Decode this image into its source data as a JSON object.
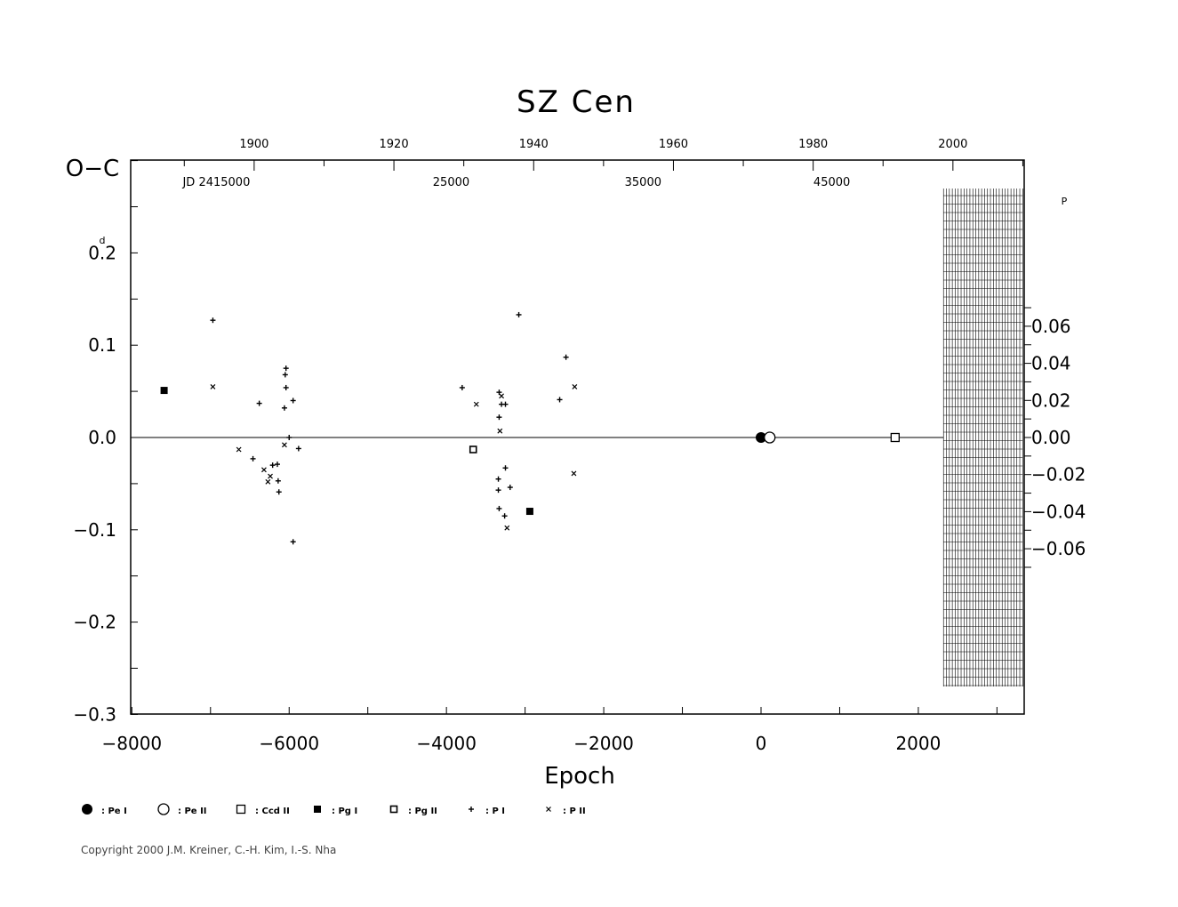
{
  "chart_data": {
    "type": "scatter",
    "title": "SZ Cen",
    "xlabel": "Epoch",
    "ylabel": "O−C",
    "ylabel_unit": "d",
    "right_axis_unit": "P",
    "xlim": [
      -8000,
      3350
    ],
    "ylim": [
      -0.3,
      0.3
    ],
    "x_ticks": [
      -8000,
      -6000,
      -4000,
      -2000,
      0,
      2000
    ],
    "x_tick_labels": [
      "−8000",
      "−6000",
      "−4000",
      "−2000",
      "0",
      "2000"
    ],
    "y_ticks": [
      -0.3,
      -0.2,
      -0.1,
      0.0,
      0.1,
      0.2
    ],
    "y_tick_labels": [
      "−0.3",
      "−0.2",
      "−0.1",
      "0.0",
      "0.1",
      "0.2"
    ],
    "top_year_ticks": [
      1900,
      1920,
      1940,
      1960,
      1980,
      2000
    ],
    "top_year_labels": [
      "1900",
      "1920",
      "1940",
      "1960",
      "1980",
      "2000"
    ],
    "top_year_epochs": [
      -6445,
      -4668,
      -2891,
      -1114,
      663,
      2440
    ],
    "jd_labels": [
      {
        "epoch": -6925,
        "text": "JD  2415000"
      },
      {
        "epoch": -3940,
        "text": "25000"
      },
      {
        "epoch": -1500,
        "text": "35000"
      },
      {
        "epoch": 900,
        "text": "45000"
      }
    ],
    "right_ticks": [
      0.06,
      0.04,
      0.02,
      0.0,
      -0.02,
      -0.04,
      -0.06
    ],
    "right_tick_labels": [
      "0.06",
      "0.04",
      "0.02",
      "0.00",
      "−0.02",
      "−0.04",
      "−0.06"
    ],
    "period_days": 2.009,
    "shaded_region": {
      "x_from": 2320,
      "x_to": 3330
    },
    "series": [
      {
        "name": "Pe I",
        "marker": "filled-circle",
        "points": [
          [
            0,
            0.0
          ]
        ]
      },
      {
        "name": "Pe II",
        "marker": "open-circle",
        "points": [
          [
            110,
            0.0
          ]
        ]
      },
      {
        "name": "Ccd II",
        "marker": "open-square",
        "points": [
          [
            1705,
            0.0
          ]
        ]
      },
      {
        "name": "Pg I",
        "marker": "filled-square",
        "points": [
          [
            -7590,
            0.051
          ],
          [
            -2940,
            -0.08
          ]
        ]
      },
      {
        "name": "Pg II",
        "marker": "small-open-square",
        "points": [
          [
            -3660,
            -0.013
          ]
        ]
      },
      {
        "name": "P I",
        "marker": "plus",
        "points": [
          [
            -6970,
            0.127
          ],
          [
            -6380,
            0.037
          ],
          [
            -6460,
            -0.023
          ],
          [
            -6210,
            -0.03
          ],
          [
            -6150,
            -0.029
          ],
          [
            -6140,
            -0.047
          ],
          [
            -6130,
            -0.059
          ],
          [
            -6040,
            0.075
          ],
          [
            -6050,
            0.068
          ],
          [
            -6040,
            0.054
          ],
          [
            -6060,
            0.032
          ],
          [
            -6000,
            0.0
          ],
          [
            -5950,
            0.04
          ],
          [
            -5880,
            -0.012
          ],
          [
            -5950,
            -0.113
          ],
          [
            -3800,
            0.054
          ],
          [
            -3330,
            0.049
          ],
          [
            -3300,
            0.036
          ],
          [
            -3250,
            0.036
          ],
          [
            -3330,
            0.022
          ],
          [
            -3250,
            -0.033
          ],
          [
            -3340,
            -0.045
          ],
          [
            -3340,
            -0.057
          ],
          [
            -3190,
            -0.054
          ],
          [
            -3330,
            -0.077
          ],
          [
            -3260,
            -0.085
          ],
          [
            -3080,
            0.133
          ],
          [
            -2480,
            0.087
          ],
          [
            -2560,
            0.041
          ]
        ]
      },
      {
        "name": "P II",
        "marker": "cross",
        "points": [
          [
            -6970,
            0.055
          ],
          [
            -6640,
            -0.013
          ],
          [
            -6320,
            -0.035
          ],
          [
            -6270,
            -0.048
          ],
          [
            -6240,
            -0.042
          ],
          [
            -6060,
            -0.008
          ],
          [
            -3620,
            0.036
          ],
          [
            -3300,
            0.045
          ],
          [
            -3320,
            0.007
          ],
          [
            -3230,
            -0.098
          ],
          [
            -2370,
            0.055
          ],
          [
            -2380,
            -0.039
          ]
        ]
      }
    ],
    "legend": {
      "placement": "bottom",
      "items": [
        {
          "marker": "filled-circle",
          "label": ": Pe I"
        },
        {
          "marker": "open-circle",
          "label": ": Pe II"
        },
        {
          "marker": "open-square",
          "label": ": Ccd II"
        },
        {
          "marker": "filled-square",
          "label": ": Pg I"
        },
        {
          "marker": "small-open-square",
          "label": ": Pg II"
        },
        {
          "marker": "plus",
          "label": ": P I"
        },
        {
          "marker": "cross",
          "label": ": P II"
        }
      ]
    }
  },
  "copyright": "Copyright 2000 J.M. Kreiner, C.-H. Kim, I.-S. Nha"
}
